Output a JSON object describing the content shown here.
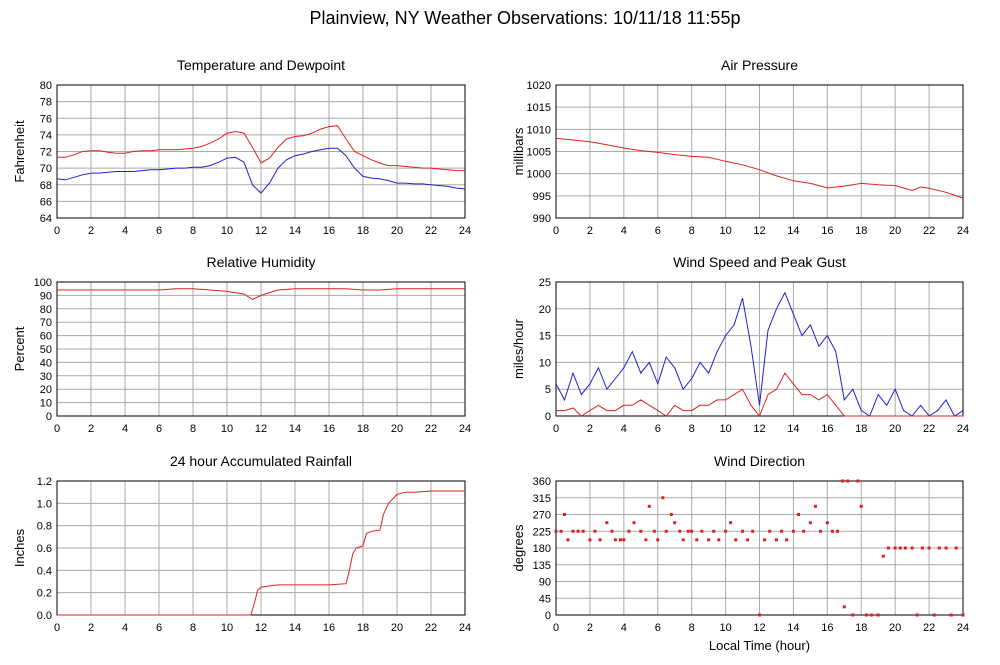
{
  "title": "Plainview, NY Weather Observations: 10/11/18 11:55p",
  "chart_data": [
    {
      "type": "line",
      "title": "Temperature and Dewpoint",
      "ylabel": "Fahrenheit",
      "x": [
        0,
        0.5,
        1,
        1.5,
        2,
        2.5,
        3,
        3.5,
        4,
        4.5,
        5,
        5.5,
        6,
        6.5,
        7,
        7.5,
        8,
        8.5,
        9,
        9.5,
        10,
        10.5,
        11,
        11.5,
        12,
        12.5,
        13,
        13.5,
        14,
        14.5,
        15,
        15.5,
        16,
        16.5,
        17,
        17.5,
        18,
        18.5,
        19,
        19.5,
        20,
        20.5,
        21,
        21.5,
        22,
        22.5,
        23,
        23.5,
        24
      ],
      "series": [
        {
          "color": "#e02020",
          "values": [
            71.3,
            71.3,
            71.6,
            72.0,
            72.1,
            72.1,
            71.9,
            71.8,
            71.8,
            72.0,
            72.1,
            72.1,
            72.2,
            72.2,
            72.2,
            72.3,
            72.4,
            72.6,
            73.0,
            73.5,
            74.2,
            74.4,
            74.2,
            72.5,
            70.6,
            71.2,
            72.5,
            73.5,
            73.8,
            73.9,
            74.2,
            74.7,
            75.0,
            75.1,
            73.5,
            72.0,
            71.5,
            71.0,
            70.6,
            70.3,
            70.3,
            70.2,
            70.1,
            70.0,
            70.0,
            69.9,
            69.8,
            69.7,
            69.7
          ]
        },
        {
          "color": "#2020d0",
          "values": [
            68.7,
            68.6,
            68.9,
            69.2,
            69.4,
            69.4,
            69.5,
            69.6,
            69.6,
            69.6,
            69.7,
            69.8,
            69.8,
            69.9,
            70.0,
            70.0,
            70.1,
            70.1,
            70.3,
            70.7,
            71.2,
            71.3,
            70.7,
            68.0,
            67.0,
            68.2,
            70.0,
            71.0,
            71.5,
            71.7,
            72.0,
            72.2,
            72.4,
            72.4,
            71.5,
            70.0,
            69.0,
            68.8,
            68.7,
            68.5,
            68.2,
            68.2,
            68.1,
            68.1,
            68.0,
            67.9,
            67.8,
            67.6,
            67.5
          ]
        }
      ],
      "xlim": [
        0,
        24
      ],
      "xticks": [
        0,
        2,
        4,
        6,
        8,
        10,
        12,
        14,
        16,
        18,
        20,
        22,
        24
      ],
      "ylim": [
        64,
        80
      ],
      "yticks": [
        64,
        66,
        68,
        70,
        72,
        74,
        76,
        78,
        80
      ],
      "grid": true
    },
    {
      "type": "line",
      "title": "Air Pressure",
      "ylabel": "millibars",
      "x": [
        0,
        1,
        2,
        3,
        4,
        5,
        6,
        7,
        8,
        9,
        10,
        11,
        12,
        13,
        14,
        15,
        16,
        17,
        18,
        19,
        20,
        21,
        21.5,
        22,
        23,
        24
      ],
      "series": [
        {
          "color": "#e02020",
          "values": [
            1008,
            1007.6,
            1007.2,
            1006.5,
            1005.8,
            1005.2,
            1004.8,
            1004.3,
            1003.9,
            1003.7,
            1002.8,
            1002.0,
            1000.9,
            999.5,
            998.4,
            997.8,
            996.8,
            997.2,
            997.8,
            997.5,
            997.3,
            996.2,
            997.0,
            996.7,
            995.8,
            994.5
          ]
        }
      ],
      "xlim": [
        0,
        24
      ],
      "xticks": [
        0,
        2,
        4,
        6,
        8,
        10,
        12,
        14,
        16,
        18,
        20,
        22,
        24
      ],
      "ylim": [
        990,
        1020
      ],
      "yticks": [
        990,
        995,
        1000,
        1005,
        1010,
        1015,
        1020
      ],
      "grid": true
    },
    {
      "type": "line",
      "title": "Relative Humidity",
      "ylabel": "Percent",
      "x": [
        0,
        1,
        2,
        3,
        4,
        5,
        6,
        7,
        8,
        9,
        10,
        11,
        11.5,
        12,
        13,
        14,
        15,
        16,
        17,
        18,
        19,
        20,
        21,
        22,
        23,
        24
      ],
      "series": [
        {
          "color": "#e02020",
          "values": [
            94,
            94,
            94,
            94,
            94,
            94,
            94,
            95,
            95,
            94,
            93,
            91,
            87,
            90,
            94,
            95,
            95,
            95,
            95,
            94,
            94,
            95,
            95,
            95,
            95,
            95
          ]
        }
      ],
      "xlim": [
        0,
        24
      ],
      "xticks": [
        0,
        2,
        4,
        6,
        8,
        10,
        12,
        14,
        16,
        18,
        20,
        22,
        24
      ],
      "ylim": [
        0,
        100
      ],
      "yticks": [
        0,
        10,
        20,
        30,
        40,
        50,
        60,
        70,
        80,
        90,
        100
      ],
      "grid": true
    },
    {
      "type": "line",
      "title": "Wind Speed and Peak Gust",
      "ylabel": "miles/hour",
      "x": [
        0,
        0.5,
        1,
        1.5,
        2,
        2.5,
        3,
        3.5,
        4,
        4.5,
        5,
        5.5,
        6,
        6.5,
        7,
        7.5,
        8,
        8.5,
        9,
        9.5,
        10,
        10.5,
        11,
        11.5,
        12,
        12.5,
        13,
        13.5,
        14,
        14.5,
        15,
        15.5,
        16,
        16.5,
        17,
        17.5,
        18,
        18.5,
        19,
        19.5,
        20,
        20.5,
        21,
        21.5,
        22,
        22.5,
        23,
        23.5,
        24
      ],
      "series": [
        {
          "color": "#2020d0",
          "values": [
            6,
            3,
            8,
            4,
            6,
            9,
            5,
            7,
            9,
            12,
            8,
            10,
            6,
            11,
            9,
            5,
            7,
            10,
            8,
            12,
            15,
            17,
            22,
            13,
            2,
            16,
            20,
            23,
            19,
            15,
            17,
            13,
            15,
            12,
            3,
            5,
            1,
            0,
            4,
            2,
            5,
            1,
            0,
            2,
            0,
            1,
            3,
            0,
            1
          ]
        },
        {
          "color": "#e02020",
          "values": [
            1,
            1,
            1.5,
            0,
            1,
            2,
            1,
            1,
            2,
            2,
            3,
            2,
            1,
            0,
            2,
            1,
            1,
            2,
            2,
            3,
            3,
            4,
            5,
            2,
            0,
            4,
            5,
            8,
            6,
            4,
            4,
            3,
            4,
            2,
            0,
            0,
            0,
            0,
            0,
            0,
            0,
            0,
            0,
            0,
            0,
            0,
            0,
            0,
            0
          ]
        }
      ],
      "xlim": [
        0,
        24
      ],
      "xticks": [
        0,
        2,
        4,
        6,
        8,
        10,
        12,
        14,
        16,
        18,
        20,
        22,
        24
      ],
      "ylim": [
        0,
        25
      ],
      "yticks": [
        0,
        5,
        10,
        15,
        20,
        25
      ],
      "grid": true
    },
    {
      "type": "line",
      "title": "24 hour Accumulated Rainfall",
      "ylabel": "Inches",
      "x": [
        0,
        11.4,
        11.6,
        11.8,
        12,
        12.5,
        13,
        14,
        15,
        16,
        17,
        17.2,
        17.4,
        17.6,
        18,
        18.2,
        18.5,
        19,
        19.2,
        19.5,
        20,
        20.5,
        21,
        22,
        23,
        24
      ],
      "series": [
        {
          "color": "#e02020",
          "values": [
            0,
            0,
            0.1,
            0.22,
            0.25,
            0.26,
            0.27,
            0.27,
            0.27,
            0.27,
            0.28,
            0.4,
            0.55,
            0.6,
            0.62,
            0.73,
            0.75,
            0.76,
            0.9,
            1.0,
            1.08,
            1.1,
            1.1,
            1.11,
            1.11,
            1.11
          ]
        }
      ],
      "xlim": [
        0,
        24
      ],
      "xticks": [
        0,
        2,
        4,
        6,
        8,
        10,
        12,
        14,
        16,
        18,
        20,
        22,
        24
      ],
      "ylim": [
        0,
        1.2
      ],
      "yticks": [
        {
          "value": 0,
          "label": "0.0"
        },
        0.2,
        0.4,
        0.6,
        0.8,
        {
          "value": 1,
          "label": "1.0"
        },
        1.2
      ],
      "grid": true
    },
    {
      "type": "scatter",
      "title": "Wind Direction",
      "ylabel": "degrees",
      "xlabel": "Local Time (hour)",
      "color": "#e02020",
      "x": [
        0,
        0.3,
        0.5,
        0.7,
        1,
        1.3,
        1.6,
        2,
        2.3,
        2.6,
        3,
        3.3,
        3.5,
        3.8,
        4,
        4.3,
        4.6,
        5,
        5.3,
        5.5,
        5.8,
        6,
        6.3,
        6.5,
        6.8,
        7,
        7.3,
        7.5,
        7.8,
        8,
        8.3,
        8.6,
        9,
        9.3,
        9.6,
        10,
        10.3,
        10.6,
        11,
        11.3,
        11.6,
        12,
        12.3,
        12.6,
        13,
        13.3,
        13.6,
        14,
        14.3,
        14.6,
        15,
        15.3,
        15.6,
        16,
        16.3,
        16.6,
        16.9,
        17,
        17.2,
        17.5,
        17.8,
        18,
        18.3,
        18.6,
        19,
        19.3,
        19.6,
        20,
        20.3,
        20.6,
        21,
        21.3,
        21.6,
        22,
        22.3,
        22.6,
        23,
        23.3,
        23.6,
        24
      ],
      "values": [
        225,
        225,
        270,
        202,
        225,
        225,
        225,
        202,
        225,
        202,
        248,
        225,
        202,
        202,
        202,
        225,
        248,
        225,
        202,
        292,
        225,
        202,
        315,
        225,
        270,
        248,
        225,
        202,
        225,
        225,
        202,
        225,
        202,
        225,
        202,
        225,
        248,
        202,
        225,
        202,
        225,
        0,
        202,
        225,
        202,
        225,
        202,
        225,
        270,
        225,
        248,
        292,
        225,
        248,
        225,
        225,
        360,
        22,
        360,
        0,
        360,
        292,
        0,
        0,
        0,
        158,
        180,
        180,
        180,
        180,
        180,
        0,
        180,
        180,
        0,
        180,
        180,
        0,
        180,
        0
      ],
      "xlim": [
        0,
        24
      ],
      "xticks": [
        0,
        2,
        4,
        6,
        8,
        10,
        12,
        14,
        16,
        18,
        20,
        22,
        24
      ],
      "ylim": [
        0,
        360
      ],
      "yticks": [
        0,
        45,
        90,
        135,
        180,
        225,
        270,
        315,
        360
      ],
      "grid": true
    }
  ]
}
